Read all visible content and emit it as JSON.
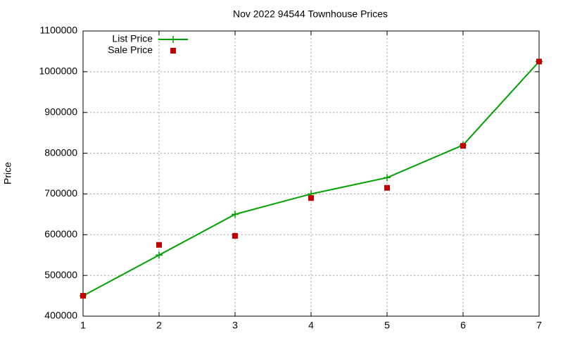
{
  "chart_data": {
    "type": "line",
    "title": "Nov 2022 94544 Townhouse Prices",
    "y_label": "Price",
    "x": [
      1,
      2,
      3,
      4,
      5,
      6,
      7
    ],
    "series": [
      {
        "name": "List Price",
        "color": "#00a000",
        "marker": "plus",
        "line": true,
        "values": [
          450000,
          550000,
          650000,
          700000,
          740000,
          820000,
          1025000
        ]
      },
      {
        "name": "Sale Price",
        "color": "#c00000",
        "marker": "square",
        "line": false,
        "values": [
          450000,
          575000,
          597000,
          690000,
          715000,
          818000,
          1025000
        ]
      }
    ],
    "xlim": [
      1,
      7
    ],
    "xticks": [
      1,
      2,
      3,
      4,
      5,
      6,
      7
    ],
    "ylim": [
      400000,
      1100000
    ],
    "yticks": [
      400000,
      500000,
      600000,
      700000,
      800000,
      900000,
      1000000,
      1100000
    ],
    "grid": true,
    "legend": "top-left"
  }
}
